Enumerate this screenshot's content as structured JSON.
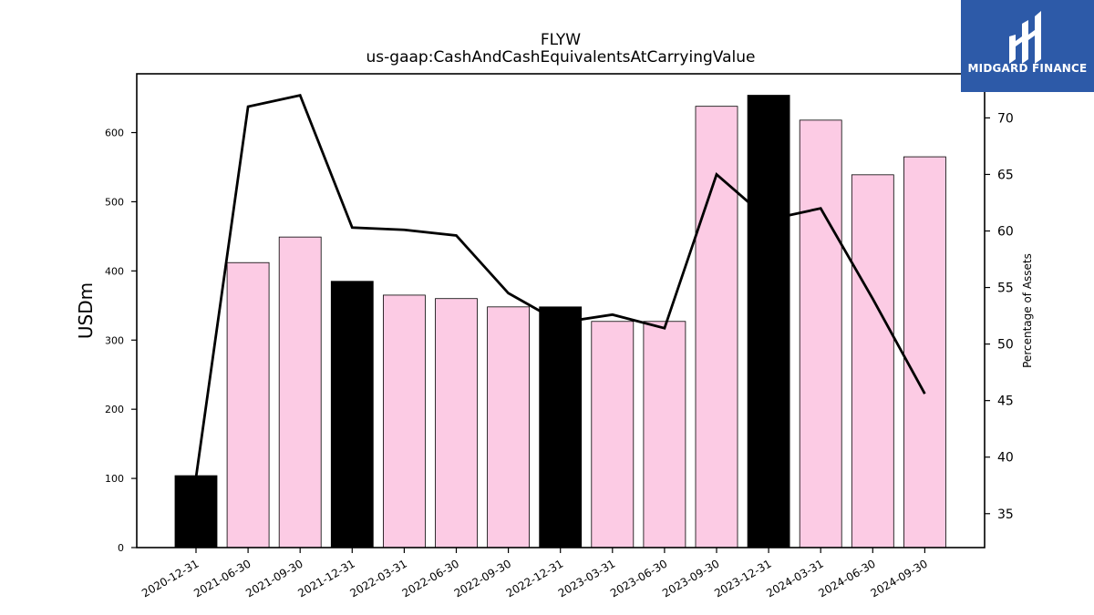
{
  "chart_data": {
    "type": "bar",
    "title": "FLYW",
    "subtitle": "us-gaap:CashAndCashEquivalentsAtCarryingValue",
    "ylabel": "USDm",
    "y2label": "Percentage of Assets",
    "categories": [
      "2020-12-31",
      "2021-06-30",
      "2021-09-30",
      "2021-12-31",
      "2022-03-31",
      "2022-06-30",
      "2022-09-30",
      "2022-12-31",
      "2023-03-31",
      "2023-06-30",
      "2023-09-30",
      "2023-12-31",
      "2024-03-31",
      "2024-06-30",
      "2024-09-30"
    ],
    "series": [
      {
        "type": "bar",
        "values": [
          104,
          412,
          449,
          385,
          365,
          360,
          348,
          348,
          327,
          327,
          638,
          654,
          618,
          539,
          565
        ],
        "highlight": [
          true,
          false,
          false,
          true,
          false,
          false,
          false,
          true,
          false,
          false,
          false,
          true,
          false,
          false,
          false
        ]
      },
      {
        "type": "line",
        "axis": "right",
        "values": [
          38.2,
          71.0,
          72.0,
          60.3,
          60.1,
          59.6,
          54.5,
          51.9,
          52.6,
          51.4,
          65.0,
          61.0,
          62.0,
          54.0,
          45.6
        ]
      }
    ],
    "ylim": [
      0,
      685
    ],
    "y2lim": [
      32,
      73.9
    ],
    "yticks": [
      0,
      100,
      200,
      300,
      400,
      500,
      600
    ],
    "y2ticks": [
      35,
      40,
      45,
      50,
      55,
      60,
      65,
      70
    ],
    "grid": false,
    "colors": {
      "bar": "#fccbe4",
      "bar_highlight": "#000000",
      "line": "#000000",
      "edge": "#000000"
    }
  },
  "logo": {
    "text": "MIDGARD FINANCE",
    "background": "#2d5aa8"
  }
}
